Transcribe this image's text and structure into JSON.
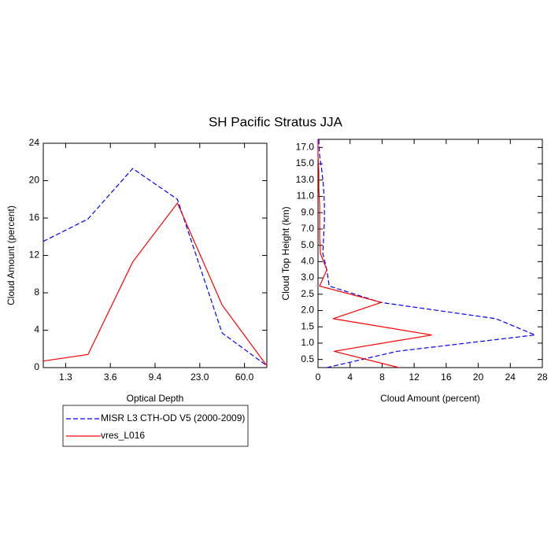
{
  "title": "SH Pacific Stratus JJA",
  "chart_data": [
    {
      "type": "line",
      "xlabel": "Optical Depth",
      "ylabel": "Cloud Amount (percent)",
      "x": [
        0,
        1,
        2,
        3,
        4,
        5
      ],
      "xlim": [
        0,
        5
      ],
      "xticks": [
        {
          "value": 0.5,
          "label": "1.3"
        },
        {
          "value": 1.5,
          "label": "3.6"
        },
        {
          "value": 2.5,
          "label": "9.4"
        },
        {
          "value": 3.5,
          "label": "23.0"
        },
        {
          "value": 4.5,
          "label": "60.0"
        }
      ],
      "ylim": [
        0,
        24
      ],
      "yticks": [
        0,
        4,
        8,
        12,
        16,
        20,
        24
      ],
      "series": [
        {
          "name": "MISR L3 CTH-OD V5 (2000-2009)",
          "color": "#0000ff",
          "dashed": true,
          "values": [
            13.5,
            15.9,
            21.3,
            18.0,
            3.7,
            0.2
          ]
        },
        {
          "name": "vres_L016",
          "color": "#ff0000",
          "dashed": false,
          "values": [
            0.7,
            1.4,
            11.3,
            17.6,
            6.7,
            0.2
          ]
        }
      ]
    },
    {
      "type": "hline",
      "xlabel": "Cloud Amount (percent)",
      "ylabel": "Cloud Top Height (km)",
      "y": [
        0,
        1,
        2,
        3,
        4,
        5,
        6,
        7,
        8,
        9,
        10,
        11,
        12,
        13,
        14
      ],
      "ylim": [
        0,
        14
      ],
      "yticks": [
        {
          "value": 0.5,
          "label": "0.5"
        },
        {
          "value": 1.5,
          "label": "1.0"
        },
        {
          "value": 2.5,
          "label": "1.5"
        },
        {
          "value": 3.5,
          "label": "2.0"
        },
        {
          "value": 4.5,
          "label": "2.5"
        },
        {
          "value": 5.5,
          "label": "3.0"
        },
        {
          "value": 6.5,
          "label": "4.0"
        },
        {
          "value": 7.5,
          "label": "5.0"
        },
        {
          "value": 8.5,
          "label": "7.0"
        },
        {
          "value": 9.5,
          "label": "9.0"
        },
        {
          "value": 10.5,
          "label": "11.0"
        },
        {
          "value": 11.5,
          "label": "13.0"
        },
        {
          "value": 12.5,
          "label": "15.0"
        },
        {
          "value": 13.5,
          "label": "17.0"
        }
      ],
      "xlim": [
        0,
        28
      ],
      "xticks": [
        0,
        4,
        8,
        12,
        16,
        20,
        24,
        28
      ],
      "series": [
        {
          "color": "#0000ff",
          "dashed": true,
          "values": [
            1.1,
            9.9,
            27.1,
            22.2,
            7.8,
            1.4,
            1.1,
            0.6,
            0.7,
            0.8,
            0.8,
            0.7,
            0.5,
            0.2,
            0.1
          ]
        },
        {
          "color": "#ff0000",
          "dashed": false,
          "values": [
            10.1,
            2.0,
            14.2,
            1.9,
            7.9,
            0.2,
            1.1,
            0.3,
            0.2,
            0.2,
            0.2,
            0.1,
            0.1,
            0.0,
            0.0
          ]
        }
      ]
    }
  ]
}
